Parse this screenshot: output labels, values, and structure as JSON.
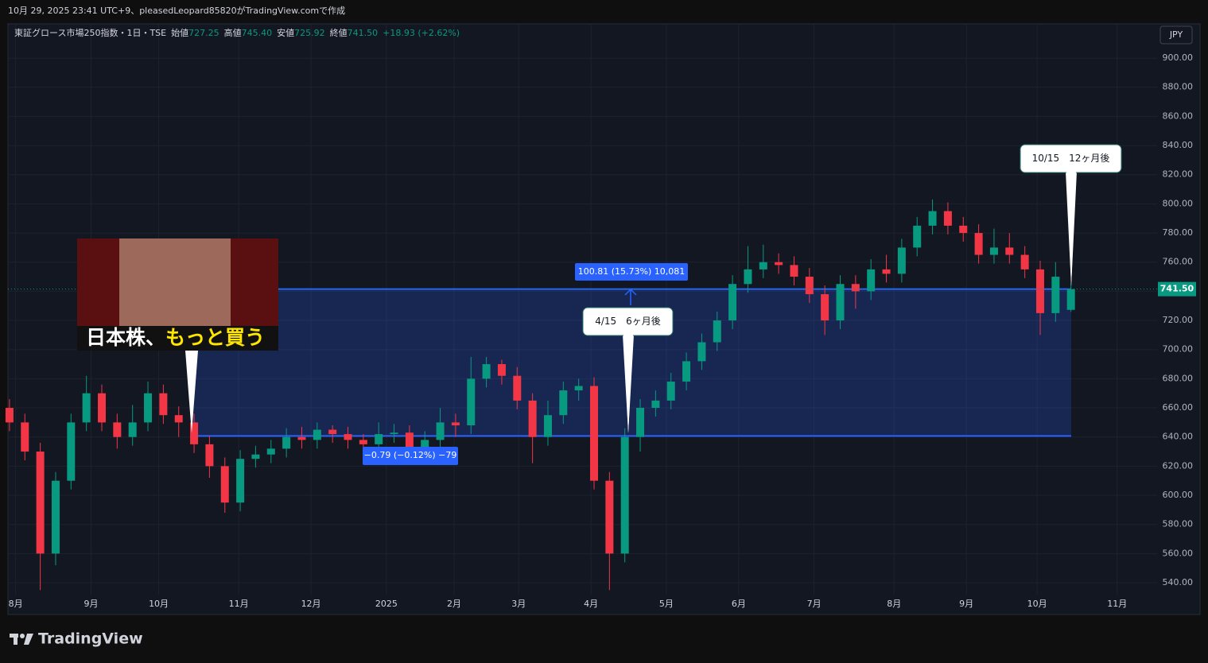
{
  "header": {
    "caption": "10月 29, 2025 23:41 UTC+9、pleasedLeopard85820がTradingView.comで作成",
    "brand": "TradingView",
    "currency": "JPY"
  },
  "legend": {
    "symbol": "東証グロース市場250指数・1日・TSE",
    "items": [
      {
        "label": "始値",
        "value": "727.25"
      },
      {
        "label": "高値",
        "value": "745.40"
      },
      {
        "label": "安値",
        "value": "725.92"
      },
      {
        "label": "終値",
        "value": "741.50"
      }
    ],
    "change": "+18.93 (+2.62%)"
  },
  "chart_data": {
    "type": "candlestick",
    "up_color": "#089981",
    "down_color": "#f23645",
    "grid": true,
    "open": [
      660,
      650,
      630,
      560,
      610,
      650,
      670,
      650,
      640,
      650,
      670,
      655,
      650,
      635,
      620,
      595,
      625,
      628,
      632,
      640,
      638,
      645,
      642,
      638,
      635,
      642,
      643,
      632,
      638,
      650,
      648,
      680,
      690,
      682,
      665,
      640,
      655,
      672,
      675,
      610,
      560,
      640,
      660,
      665,
      678,
      692,
      705,
      720,
      745,
      755,
      760,
      758,
      750,
      738,
      720,
      745,
      740,
      755,
      752,
      770,
      785,
      795,
      785,
      780,
      765,
      770,
      765,
      755,
      725,
      727.25
    ],
    "high": [
      666,
      656,
      636,
      616,
      656,
      682,
      676,
      656,
      662,
      678,
      676,
      661,
      656,
      641,
      626,
      631,
      634,
      638,
      646,
      647,
      650,
      648,
      647,
      642,
      650,
      649,
      648,
      644,
      660,
      656,
      695,
      695,
      693,
      688,
      670,
      665,
      678,
      680,
      681,
      616,
      646,
      666,
      672,
      684,
      698,
      711,
      726,
      751,
      771,
      772,
      766,
      764,
      756,
      744,
      751,
      751,
      762,
      765,
      776,
      791,
      803,
      801,
      791,
      786,
      783,
      780,
      771,
      761,
      760,
      745.4
    ],
    "low": [
      644,
      624,
      535,
      552,
      604,
      644,
      644,
      632,
      634,
      644,
      649,
      640,
      629,
      612,
      588,
      589,
      619,
      622,
      626,
      632,
      632,
      636,
      632,
      626,
      629,
      636,
      622,
      626,
      632,
      640,
      642,
      674,
      676,
      659,
      622,
      634,
      649,
      665,
      604,
      535,
      554,
      630,
      654,
      659,
      672,
      686,
      699,
      714,
      739,
      749,
      752,
      744,
      732,
      710,
      714,
      728,
      734,
      746,
      746,
      764,
      779,
      779,
      774,
      759,
      759,
      759,
      749,
      710,
      719,
      725.92
    ],
    "close": [
      650,
      630,
      560,
      610,
      650,
      670,
      650,
      640,
      650,
      670,
      655,
      650,
      635,
      620,
      595,
      625,
      628,
      632,
      640,
      638,
      645,
      642,
      638,
      635,
      642,
      643,
      632,
      638,
      650,
      648,
      680,
      690,
      682,
      665,
      640,
      655,
      672,
      675,
      610,
      560,
      640,
      660,
      665,
      678,
      692,
      705,
      720,
      745,
      755,
      760,
      758,
      750,
      738,
      720,
      745,
      740,
      755,
      752,
      770,
      785,
      795,
      785,
      780,
      765,
      770,
      765,
      755,
      725,
      750,
      741.5
    ],
    "xlim": [
      -0.1,
      74.6
    ],
    "ylim": [
      518.2,
      923.5
    ],
    "xticks": [
      {
        "value": 0.4,
        "label": "8月"
      },
      {
        "value": 5.3,
        "label": "9月"
      },
      {
        "value": 9.7,
        "label": "10月"
      },
      {
        "value": 14.9,
        "label": "11月"
      },
      {
        "value": 19.6,
        "label": "12月"
      },
      {
        "value": 24.5,
        "label": "2025"
      },
      {
        "value": 28.9,
        "label": "2月"
      },
      {
        "value": 33.1,
        "label": "3月"
      },
      {
        "value": 37.8,
        "label": "4月"
      },
      {
        "value": 42.7,
        "label": "5月"
      },
      {
        "value": 47.4,
        "label": "6月"
      },
      {
        "value": 52.3,
        "label": "7月"
      },
      {
        "value": 57.5,
        "label": "8月"
      },
      {
        "value": 62.2,
        "label": "9月"
      },
      {
        "value": 66.8,
        "label": "10月"
      },
      {
        "value": 72,
        "label": "11月"
      }
    ],
    "yticks": [
      {
        "value": 540,
        "label": "540.00"
      },
      {
        "value": 560,
        "label": "560.00"
      },
      {
        "value": 580,
        "label": "580.00"
      },
      {
        "value": 600,
        "label": "600.00"
      },
      {
        "value": 620,
        "label": "620.00"
      },
      {
        "value": 640,
        "label": "640.00"
      },
      {
        "value": 660,
        "label": "660.00"
      },
      {
        "value": 680,
        "label": "680.00"
      },
      {
        "value": 700,
        "label": "700.00"
      },
      {
        "value": 720,
        "label": "720.00"
      },
      {
        "value": 740,
        "label": "740.00"
      },
      {
        "value": 760,
        "label": "760.00"
      },
      {
        "value": 780,
        "label": "780.00"
      },
      {
        "value": 800,
        "label": "800.00"
      },
      {
        "value": 820,
        "label": "820.00"
      },
      {
        "value": 840,
        "label": "840.00"
      },
      {
        "value": 860,
        "label": "860.00"
      },
      {
        "value": 880,
        "label": "880.00"
      },
      {
        "value": 900,
        "label": "900.00"
      }
    ],
    "last_price": {
      "value": 741.5,
      "label": "741.50"
    },
    "range_box": {
      "low": 640.7,
      "high": 741.5,
      "label": "100.81 (15.73%) 10,081"
    },
    "annotations": [
      "−0.79 (−0.12%) −79",
      "4/15　6ヶ月後",
      "10/15　12ヶ月後"
    ],
    "thumbnail": {
      "text_white": "日本株、",
      "text_yellow": "もっと買う"
    }
  }
}
